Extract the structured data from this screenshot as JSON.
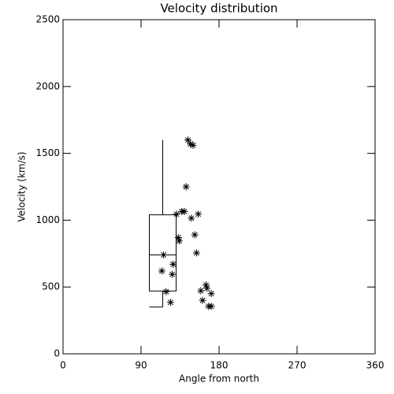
{
  "chart_data": {
    "type": "scatter",
    "title": "Velocity distribution",
    "x_label": "Angle from north",
    "y_label": "Velocity (km/s)",
    "xlim": [
      0,
      360
    ],
    "xticks": [
      0,
      90,
      180,
      270,
      360
    ],
    "ylim": [
      0,
      2500
    ],
    "yticks": [
      0,
      500,
      1000,
      1500,
      2000,
      2500
    ],
    "color": "#000000",
    "x": [
      116,
      114,
      119,
      124,
      127,
      126,
      131,
      133,
      134,
      137,
      140,
      142,
      144,
      147,
      150,
      148,
      156,
      152,
      154,
      159,
      165,
      166,
      161,
      168,
      171,
      171
    ],
    "values": [
      740,
      620,
      465,
      385,
      670,
      595,
      1045,
      870,
      845,
      1065,
      1065,
      1250,
      1600,
      1570,
      1560,
      1015,
      1045,
      890,
      755,
      472,
      515,
      490,
      400,
      355,
      355,
      450
    ],
    "box": {
      "x": 115,
      "min": 350,
      "q1": 470,
      "median": 740,
      "q3": 1040,
      "max": 1600
    }
  }
}
